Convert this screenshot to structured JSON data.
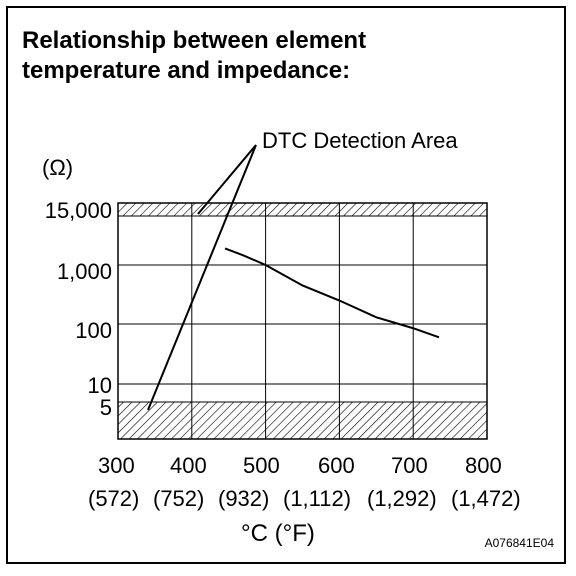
{
  "title_line1": "Relationship between element",
  "title_line2": "temperature and impedance:",
  "callout": "DTC Detection Area",
  "image_code": "A076841E04",
  "chart_data": {
    "type": "line",
    "title": "Relationship between element temperature and impedance:",
    "xlabel": "°C (°F)",
    "ylabel": "(Ω)",
    "x_ticks": [
      "300",
      "400",
      "500",
      "600",
      "700",
      "800"
    ],
    "x_ticks_secondary": [
      "(572)",
      "(752)",
      "(932)",
      "(1,112)",
      "(1,292)",
      "(1,472)"
    ],
    "y_ticks": [
      "15,000",
      "1,000",
      "100",
      "10",
      "5"
    ],
    "xlim": [
      300,
      800
    ],
    "y_scale": "log (non-uniform)",
    "grid": true,
    "detection_areas": [
      {
        "from": 15000,
        "to": 25000,
        "label": "DTC Detection Area"
      },
      {
        "from": 1,
        "to": 5,
        "label": "DTC Detection Area"
      }
    ],
    "series": [
      {
        "x": [
          445,
          470,
          500,
          550,
          600,
          650,
          700,
          735
        ],
        "y": [
          2500,
          1700,
          1000,
          450,
          250,
          130,
          85,
          60
        ]
      }
    ]
  }
}
